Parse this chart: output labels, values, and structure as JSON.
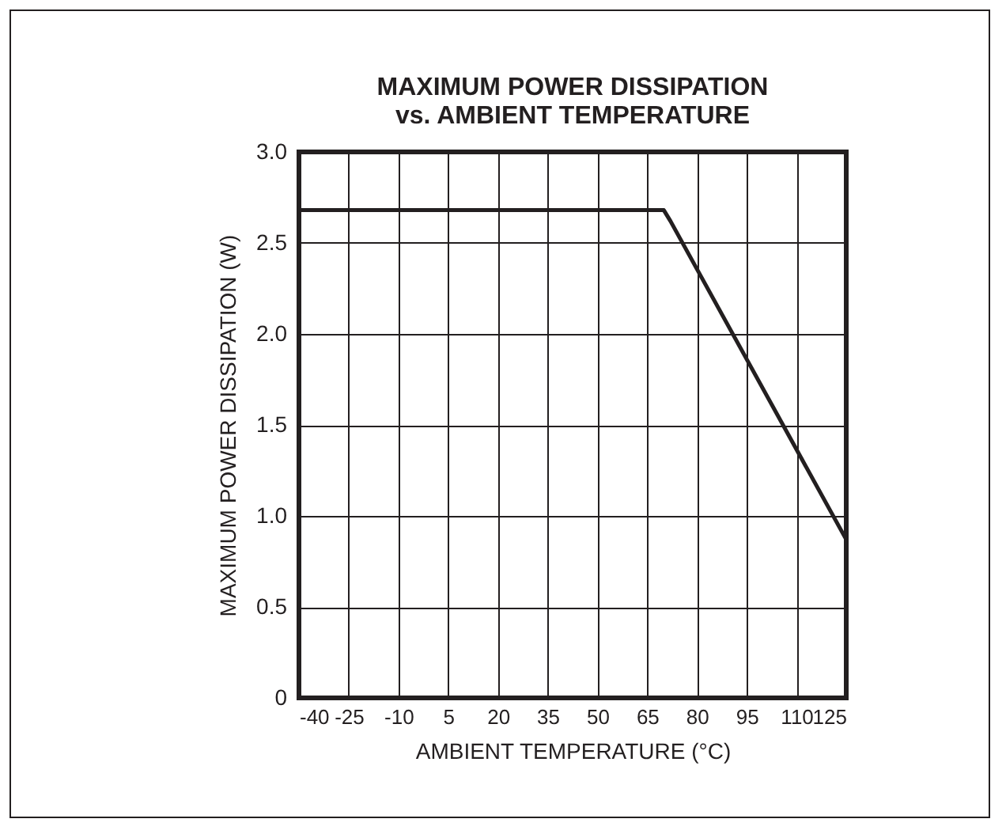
{
  "chart_data": {
    "type": "line",
    "title": [
      "MAXIMUM POWER DISSIPATION",
      "vs. AMBIENT TEMPERATURE"
    ],
    "xlabel": "AMBIENT TEMPERATURE (°C)",
    "ylabel": "MAXIMUM POWER DISSIPATION (W)",
    "x": [
      -40,
      70,
      72,
      125
    ],
    "series": [
      {
        "color": "#231f20",
        "values": [
          2.68,
          2.68,
          2.62,
          0.87
        ]
      }
    ],
    "xlim": [
      -40,
      125
    ],
    "xticks": [
      -40,
      -25,
      -10,
      5,
      20,
      35,
      50,
      65,
      80,
      95,
      110,
      125
    ],
    "ylim": [
      0,
      3
    ],
    "yticks": [
      {
        "value": 0,
        "label": "0"
      },
      {
        "value": 0.5,
        "label": "0.5"
      },
      {
        "value": 1,
        "label": "1.0"
      },
      {
        "value": 1.5,
        "label": "1.5"
      },
      {
        "value": 2,
        "label": "2.0"
      },
      {
        "value": 2.5,
        "label": "2.5"
      },
      {
        "value": 3,
        "label": "3.0"
      }
    ],
    "grid": true,
    "marker": "none",
    "line_style": "solid"
  }
}
